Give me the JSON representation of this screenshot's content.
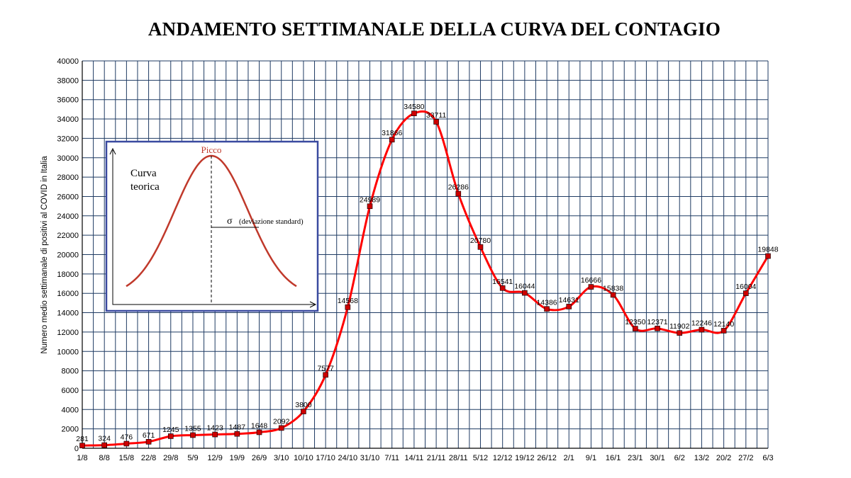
{
  "chart_data": {
    "type": "line",
    "title": "ANDAMENTO SETTIMANALE DELLA CURVA DEL CONTAGIO",
    "ylabel": "Numero medio settimanale di positivi al COVID in Italia",
    "xlabel": "",
    "ylim": [
      0,
      40000
    ],
    "ytick_step": 2000,
    "grid": true,
    "categories": [
      "1/8",
      "8/8",
      "15/8",
      "22/8",
      "29/8",
      "5/9",
      "12/9",
      "19/9",
      "26/9",
      "3/10",
      "10/10",
      "17/10",
      "24/10",
      "31/10",
      "7/11",
      "14/11",
      "21/11",
      "28/11",
      "5/12",
      "12/12",
      "19/12",
      "26/12",
      "2/1",
      "9/1",
      "16/1",
      "23/1",
      "30/1",
      "6/2",
      "13/2",
      "20/2",
      "27/2",
      "6/3"
    ],
    "series": [
      {
        "values": [
          281,
          324,
          476,
          671,
          1245,
          1355,
          1423,
          1487,
          1648,
          2092,
          3800,
          7577,
          14568,
          24989,
          31866,
          34580,
          33711,
          26286,
          20780,
          16541,
          16044,
          14386,
          14631,
          16666,
          15838,
          12350,
          12371,
          11902,
          12246,
          12140,
          16004,
          19848
        ],
        "color": "#ff0000",
        "marker_color": "#cc0000"
      }
    ],
    "inset": {
      "label_peak": "Picco",
      "label_curve": [
        "Curva",
        "teorica"
      ],
      "label_sigma_symbol": "σ",
      "label_sigma": "(deviazione standard)",
      "curve_color": "#c0392b",
      "border_color": "#3a4aa0"
    },
    "grid_color": "#1f3b63"
  }
}
